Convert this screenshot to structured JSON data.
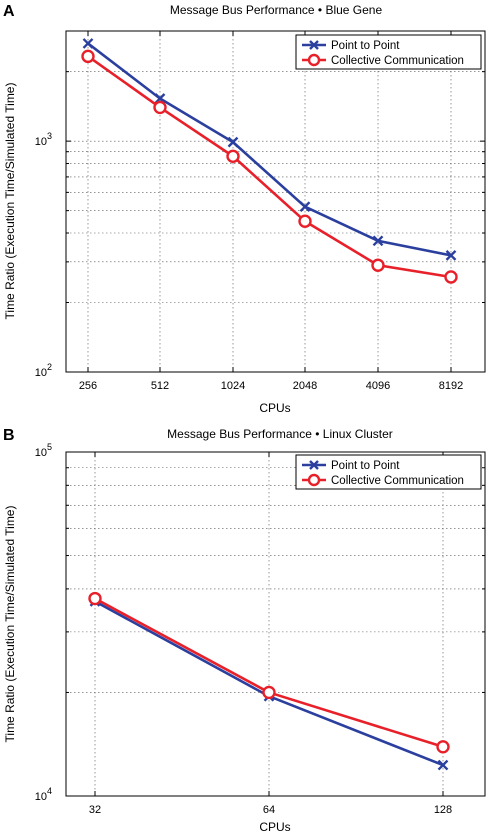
{
  "chart_data": [
    {
      "panel": "A",
      "type": "line",
      "title": "Message Bus Performance • Blue Gene",
      "xlabel": "CPUs",
      "ylabel": "Time Ratio (Execution Time/Simulated Time)",
      "yscale": "log",
      "ylim": [
        100,
        3000
      ],
      "categories": [
        "256",
        "512",
        "1024",
        "2048",
        "4096",
        "8192"
      ],
      "y_major_ticks": [
        {
          "value": 100,
          "base": "10",
          "exp": "2"
        },
        {
          "value": 1000,
          "base": "10",
          "exp": "3"
        }
      ],
      "legend_position": "top-right",
      "grid": true,
      "series": [
        {
          "name": "Point to Point",
          "color": "#2b3f9e",
          "marker": "x",
          "values": [
            2650,
            1530,
            990,
            520,
            370,
            320
          ]
        },
        {
          "name": "Collective Communication",
          "color": "#e8202a",
          "marker": "o",
          "values": [
            2330,
            1400,
            860,
            450,
            290,
            258
          ]
        }
      ]
    },
    {
      "panel": "B",
      "type": "line",
      "title": "Message Bus Performance • Linux Cluster",
      "xlabel": "CPUs",
      "ylabel": "Time Ratio (Execution Time/Simulated Time)",
      "yscale": "log",
      "ylim": [
        10000,
        100000
      ],
      "categories": [
        "32",
        "64",
        "128"
      ],
      "y_major_ticks": [
        {
          "value": 10000,
          "base": "10",
          "exp": "4"
        },
        {
          "value": 100000,
          "base": "10",
          "exp": "5"
        }
      ],
      "legend_position": "top-right",
      "grid": true,
      "series": [
        {
          "name": "Point to Point",
          "color": "#2b3f9e",
          "marker": "x",
          "values": [
            36800,
            19500,
            12300
          ]
        },
        {
          "name": "Collective Communication",
          "color": "#e8202a",
          "marker": "o",
          "values": [
            37500,
            20000,
            13900
          ]
        }
      ]
    }
  ]
}
